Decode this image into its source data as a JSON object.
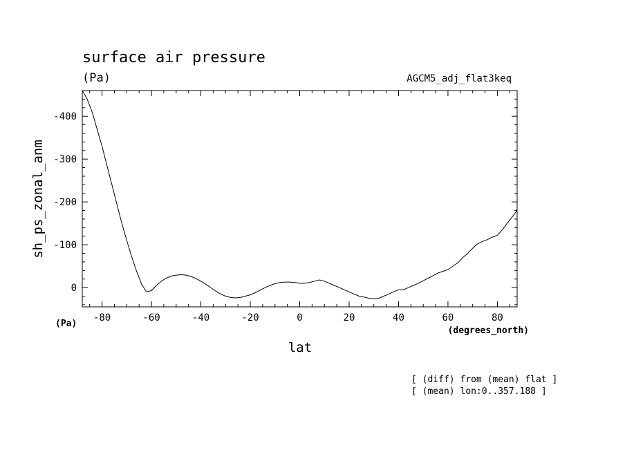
{
  "chart_data": {
    "type": "line",
    "title": "surface air pressure",
    "units_label": "(Pa)",
    "run_label": "AGCM5_adj_flat3keq",
    "xlabel": "lat",
    "ylabel": "sh_ps_zonal_anm",
    "x_unit_label": "(degrees_north)",
    "y_unit_label": "(Pa)",
    "xlim": [
      -88,
      88
    ],
    "ylim": [
      -460,
      45
    ],
    "y_inverted": true,
    "x_ticks": [
      -80,
      -60,
      -40,
      -20,
      0,
      20,
      40,
      60,
      80
    ],
    "x_tick_labels": [
      "-80",
      "-60",
      "-40",
      "-20",
      "0",
      "20",
      "40",
      "60",
      "80"
    ],
    "y_ticks": [
      -400,
      -300,
      -200,
      -100,
      0
    ],
    "y_tick_labels": [
      "-400",
      "-300",
      "-200",
      "-100",
      "0"
    ],
    "grid": false,
    "series": [
      {
        "x": [
          -88,
          -86,
          -84,
          -82,
          -80,
          -78,
          -76,
          -74,
          -72,
          -70,
          -68,
          -66,
          -64,
          -62,
          -60,
          -58,
          -56,
          -54,
          -52,
          -50,
          -48,
          -46,
          -44,
          -42,
          -40,
          -38,
          -36,
          -34,
          -32,
          -30,
          -28,
          -26,
          -24,
          -22,
          -20,
          -18,
          -16,
          -14,
          -12,
          -10,
          -8,
          -6,
          -4,
          -2,
          0,
          2,
          4,
          6,
          8,
          10,
          12,
          14,
          16,
          18,
          20,
          22,
          24,
          26,
          28,
          30,
          32,
          34,
          36,
          38,
          40,
          42,
          44,
          46,
          48,
          50,
          52,
          54,
          56,
          58,
          60,
          62,
          64,
          66,
          68,
          70,
          72,
          74,
          76,
          78,
          80,
          82,
          84,
          86,
          88
        ],
        "values": [
          -460,
          -440,
          -410,
          -370,
          -330,
          -285,
          -240,
          -195,
          -150,
          -110,
          -72,
          -38,
          -8,
          10,
          7,
          -5,
          -15,
          -22,
          -27,
          -29,
          -30,
          -29,
          -26,
          -21,
          -15,
          -8,
          0,
          8,
          15,
          20,
          23,
          24,
          23,
          20,
          17,
          12,
          6,
          0,
          -5,
          -9,
          -12,
          -13,
          -13,
          -12,
          -10,
          -10,
          -12,
          -15,
          -18,
          -15,
          -10,
          -5,
          0,
          5,
          10,
          15,
          20,
          22,
          25,
          26,
          25,
          20,
          15,
          10,
          5,
          5,
          0,
          -5,
          -10,
          -16,
          -22,
          -28,
          -34,
          -38,
          -42,
          -50,
          -58,
          -70,
          -80,
          -92,
          -102,
          -108,
          -112,
          -118,
          -122,
          -135,
          -150,
          -165,
          -180
        ]
      }
    ],
    "footnotes": [
      "[ (diff) from (mean) flat ]",
      "[ (mean) lon:0..357.188 ]"
    ]
  }
}
